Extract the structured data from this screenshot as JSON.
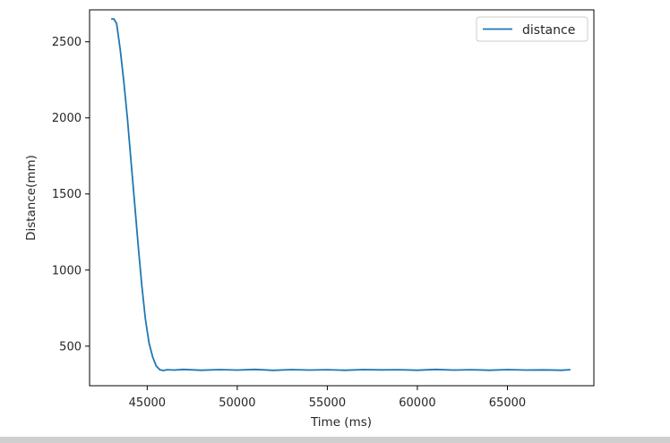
{
  "chart_data": {
    "type": "line",
    "title": "",
    "xlabel": "Time (ms)",
    "ylabel": "Distance(mm)",
    "xlim": [
      41800,
      69800
    ],
    "ylim": [
      240,
      2710
    ],
    "xticks": [
      45000,
      50000,
      55000,
      60000,
      65000
    ],
    "xtick_labels": [
      "45000",
      "50000",
      "55000",
      "60000",
      "65000"
    ],
    "yticks": [
      500,
      1000,
      1500,
      2000,
      2500
    ],
    "ytick_labels": [
      "500",
      "1000",
      "1500",
      "2000",
      "2500"
    ],
    "grid": false,
    "legend_position": "top-right",
    "series": [
      {
        "name": "distance",
        "color": "#1f77b4",
        "x": [
          43000,
          43150,
          43300,
          43500,
          43700,
          43900,
          44100,
          44300,
          44500,
          44700,
          44900,
          45100,
          45300,
          45500,
          45700,
          45900,
          46100,
          46500,
          47000,
          48000,
          49000,
          50000,
          51000,
          52000,
          53000,
          54000,
          55000,
          56000,
          57000,
          58000,
          59000,
          60000,
          61000,
          62000,
          63000,
          64000,
          65000,
          66000,
          67000,
          68000,
          68500
        ],
        "y": [
          2650,
          2650,
          2620,
          2450,
          2240,
          2000,
          1720,
          1440,
          1160,
          900,
          680,
          520,
          430,
          370,
          345,
          340,
          345,
          343,
          347,
          342,
          346,
          343,
          347,
          341,
          346,
          343,
          345,
          342,
          346,
          344,
          345,
          342,
          347,
          343,
          345,
          342,
          346,
          343,
          344,
          342,
          345
        ]
      }
    ]
  }
}
